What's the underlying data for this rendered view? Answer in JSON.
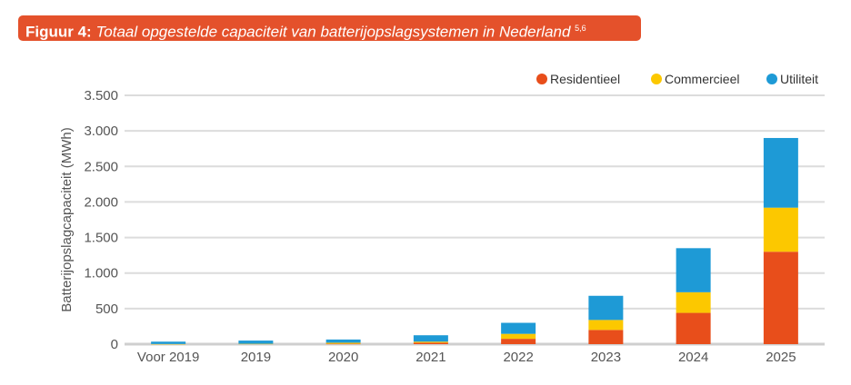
{
  "figure_label": "Figuur 4:",
  "chart_data": {
    "type": "bar",
    "stacked": true,
    "title": "Totaal opgestelde capaciteit van batterijopslagsystemen in Nederland",
    "title_superscript": "5,6",
    "xlabel": "",
    "ylabel": "Batterijopslagcapaciteit (MWh)",
    "ylim": [
      0,
      3500
    ],
    "yticks": [
      0,
      500,
      1000,
      1500,
      2000,
      2500,
      3000,
      3500
    ],
    "ytick_labels": [
      "0",
      "500",
      "1.000",
      "1.500",
      "2.000",
      "2.500",
      "3.000",
      "3.500"
    ],
    "grid": true,
    "legend_position": "top-right",
    "categories": [
      "Voor 2019",
      "2019",
      "2020",
      "2021",
      "2022",
      "2023",
      "2024",
      "2025"
    ],
    "series": [
      {
        "name": "Residentieel",
        "color": "#e84e1b",
        "values": [
          0,
          0,
          5,
          20,
          75,
          200,
          440,
          1300
        ]
      },
      {
        "name": "Commercieel",
        "color": "#fcc800",
        "values": [
          2,
          5,
          15,
          15,
          70,
          140,
          290,
          620
        ]
      },
      {
        "name": "Utiliteit",
        "color": "#1e9ad6",
        "values": [
          33,
          45,
          45,
          90,
          155,
          340,
          620,
          980
        ]
      }
    ]
  }
}
